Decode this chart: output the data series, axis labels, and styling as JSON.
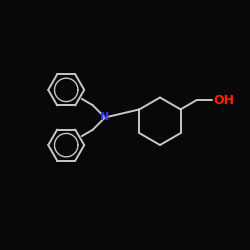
{
  "background_color": "#080808",
  "bond_color": "#c8c8c8",
  "N_color": "#3333ff",
  "O_color": "#ff2200",
  "bond_width": 1.4,
  "N_fontsize": 8,
  "OH_fontsize": 9,
  "xlim": [
    0,
    10
  ],
  "ylim": [
    0,
    10
  ],
  "figsize": [
    2.5,
    2.5
  ],
  "dpi": 100
}
